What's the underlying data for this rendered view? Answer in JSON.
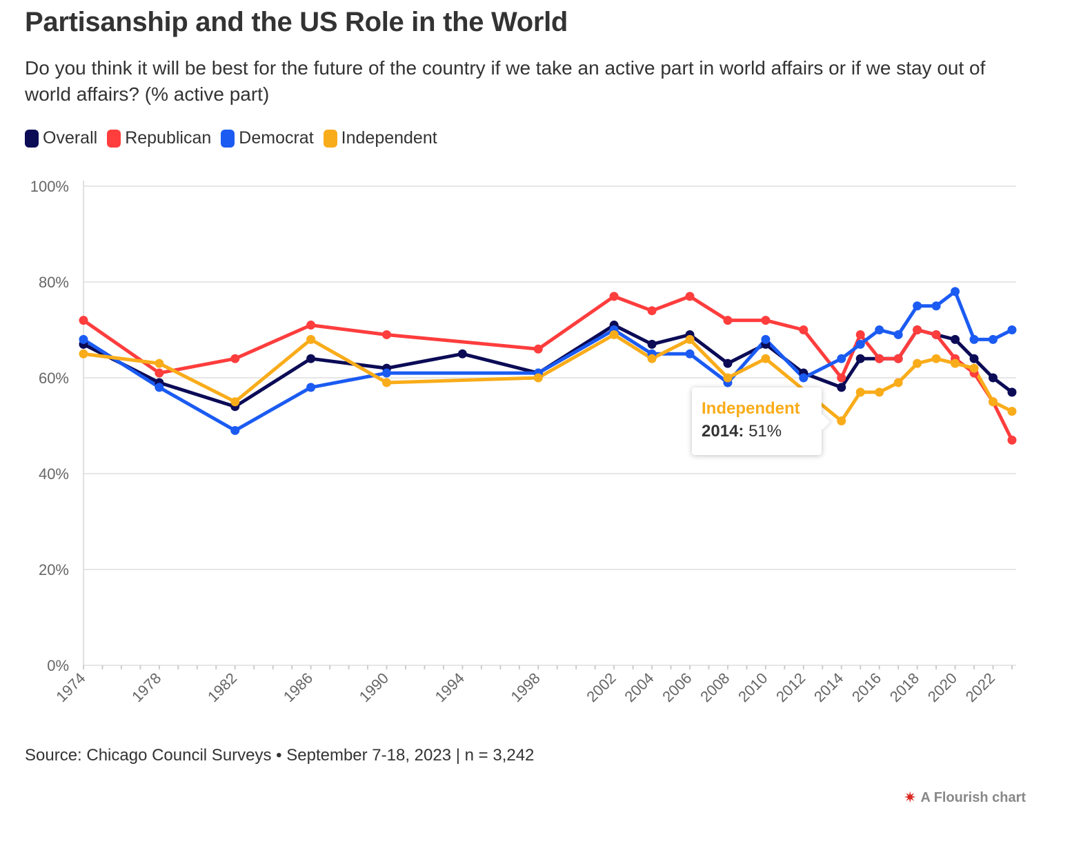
{
  "header": {
    "title": "Partisanship and the US Role in the World",
    "subtitle": "Do you think it will be best for the future of the country if we take an active part in world affairs or if we stay out of world affairs? (% active part)"
  },
  "legend": [
    {
      "label": "Overall",
      "color": "#0b0b56"
    },
    {
      "label": "Republican",
      "color": "#fe3d3d"
    },
    {
      "label": "Democrat",
      "color": "#1b5bf2"
    },
    {
      "label": "Independent",
      "color": "#f9ac1a"
    }
  ],
  "tooltip": {
    "series": "Independent",
    "year_label": "2014:",
    "value_label": "51%"
  },
  "footer": {
    "source": "Source: Chicago Council Surveys • September 7-18, 2023 | n = 3,242",
    "credit": "A Flourish chart",
    "credit_icon": "flourish-logo-icon"
  },
  "chart_data": {
    "type": "line",
    "title": "Partisanship and the US Role in the World",
    "xlabel": "",
    "ylabel": "",
    "ylim": [
      0,
      100
    ],
    "xlim": [
      1974,
      2023
    ],
    "y_ticks": [
      0,
      20,
      40,
      60,
      80,
      100
    ],
    "y_tick_labels": [
      "0%",
      "20%",
      "40%",
      "60%",
      "80%",
      "100%"
    ],
    "x_ticks": [
      1974,
      1978,
      1982,
      1986,
      1990,
      1994,
      1998,
      2002,
      2004,
      2006,
      2008,
      2010,
      2012,
      2014,
      2016,
      2018,
      2020,
      2022
    ],
    "grid": true,
    "legend_position": "top-left",
    "series": [
      {
        "name": "Overall",
        "color": "#0b0b56",
        "points": [
          [
            1974,
            67
          ],
          [
            1978,
            59
          ],
          [
            1982,
            54
          ],
          [
            1986,
            64
          ],
          [
            1990,
            62
          ],
          [
            1994,
            65
          ],
          [
            1998,
            61
          ],
          [
            2002,
            71
          ],
          [
            2004,
            67
          ],
          [
            2006,
            69
          ],
          [
            2008,
            63
          ],
          [
            2010,
            67
          ],
          [
            2012,
            61
          ],
          [
            2014,
            58
          ],
          [
            2015,
            64
          ],
          [
            2016,
            64
          ],
          [
            2017,
            64
          ],
          [
            2018,
            70
          ],
          [
            2019,
            69
          ],
          [
            2020,
            68
          ],
          [
            2021,
            64
          ],
          [
            2022,
            60
          ],
          [
            2023,
            57
          ]
        ]
      },
      {
        "name": "Republican",
        "color": "#fe3d3d",
        "points": [
          [
            1974,
            72
          ],
          [
            1978,
            61
          ],
          [
            1982,
            64
          ],
          [
            1986,
            71
          ],
          [
            1990,
            69
          ],
          [
            1998,
            66
          ],
          [
            2002,
            77
          ],
          [
            2004,
            74
          ],
          [
            2006,
            77
          ],
          [
            2008,
            72
          ],
          [
            2010,
            72
          ],
          [
            2012,
            70
          ],
          [
            2014,
            60
          ],
          [
            2015,
            69
          ],
          [
            2016,
            64
          ],
          [
            2017,
            64
          ],
          [
            2018,
            70
          ],
          [
            2019,
            69
          ],
          [
            2020,
            64
          ],
          [
            2021,
            61
          ],
          [
            2022,
            55
          ],
          [
            2023,
            47
          ]
        ]
      },
      {
        "name": "Democrat",
        "color": "#1b5bf2",
        "points": [
          [
            1974,
            68
          ],
          [
            1978,
            58
          ],
          [
            1982,
            49
          ],
          [
            1986,
            58
          ],
          [
            1990,
            61
          ],
          [
            1998,
            61
          ],
          [
            2002,
            70
          ],
          [
            2004,
            65
          ],
          [
            2006,
            65
          ],
          [
            2008,
            59
          ],
          [
            2010,
            68
          ],
          [
            2012,
            60
          ],
          [
            2014,
            64
          ],
          [
            2015,
            67
          ],
          [
            2016,
            70
          ],
          [
            2017,
            69
          ],
          [
            2018,
            75
          ],
          [
            2019,
            75
          ],
          [
            2020,
            78
          ],
          [
            2021,
            68
          ],
          [
            2022,
            68
          ],
          [
            2023,
            70
          ]
        ]
      },
      {
        "name": "Independent",
        "color": "#f9ac1a",
        "points": [
          [
            1974,
            65
          ],
          [
            1978,
            63
          ],
          [
            1982,
            55
          ],
          [
            1986,
            68
          ],
          [
            1990,
            59
          ],
          [
            1998,
            60
          ],
          [
            2002,
            69
          ],
          [
            2004,
            64
          ],
          [
            2006,
            68
          ],
          [
            2008,
            60
          ],
          [
            2010,
            64
          ],
          [
            2014,
            51
          ],
          [
            2015,
            57
          ],
          [
            2016,
            57
          ],
          [
            2017,
            59
          ],
          [
            2018,
            63
          ],
          [
            2019,
            64
          ],
          [
            2020,
            63
          ],
          [
            2021,
            62
          ],
          [
            2022,
            55
          ],
          [
            2023,
            53
          ]
        ]
      }
    ]
  }
}
